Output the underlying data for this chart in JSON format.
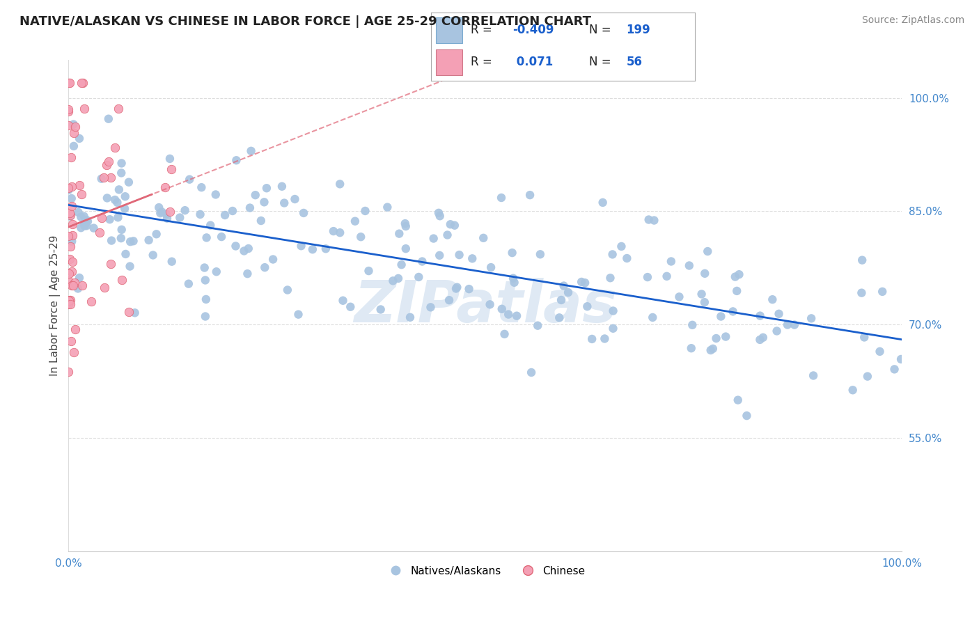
{
  "title": "NATIVE/ALASKAN VS CHINESE IN LABOR FORCE | AGE 25-29 CORRELATION CHART",
  "source": "Source: ZipAtlas.com",
  "ylabel": "In Labor Force | Age 25-29",
  "xlim": [
    0.0,
    1.0
  ],
  "ylim": [
    0.4,
    1.05
  ],
  "y_ticks": [
    0.55,
    0.7,
    0.85,
    1.0
  ],
  "y_tick_labels": [
    "55.0%",
    "70.0%",
    "85.0%",
    "100.0%"
  ],
  "x_ticks": [
    0.0,
    1.0
  ],
  "x_tick_labels": [
    "0.0%",
    "100.0%"
  ],
  "legend_R_blue": "-0.409",
  "legend_N_blue": "199",
  "legend_R_pink": "0.071",
  "legend_N_pink": "56",
  "blue_color": "#a8c4e0",
  "pink_color": "#f4a0b5",
  "trendline_blue_color": "#1a5fcc",
  "trendline_pink_color": "#e06878",
  "tick_label_color": "#4488cc",
  "watermark": "ZIPatlas",
  "background_color": "#ffffff",
  "grid_color": "#dddddd",
  "title_fontsize": 13,
  "source_fontsize": 10,
  "tick_fontsize": 11,
  "ylabel_fontsize": 11
}
